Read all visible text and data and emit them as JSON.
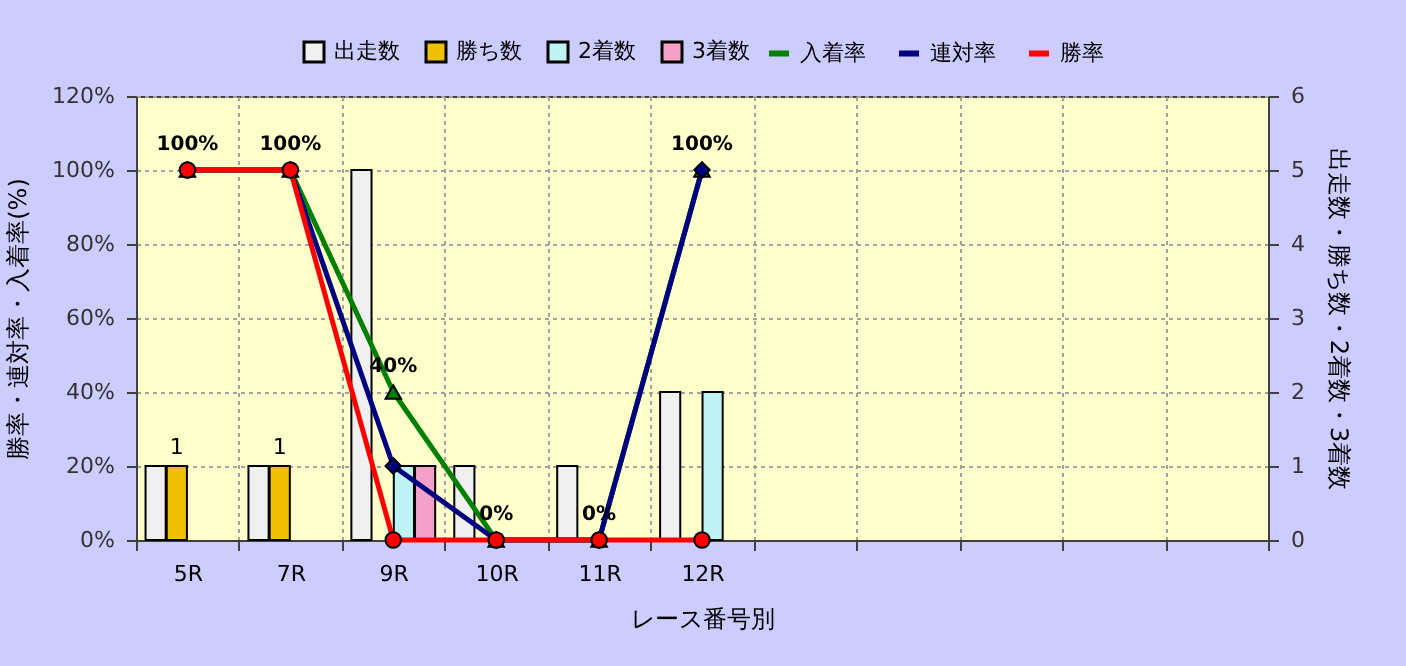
{
  "chart_data": {
    "type": "bar",
    "xlabel": "レース番号別",
    "ylabel": "勝率・連対率・入着率(%)",
    "y2label": "出走数・勝ち数・2着数・3着数",
    "categories": [
      "5R",
      "7R",
      "9R",
      "10R",
      "11R",
      "12R",
      null,
      null,
      null,
      null,
      null
    ],
    "ylim": [
      0,
      120
    ],
    "yticks": [
      {
        "value": 0,
        "label": "0%"
      },
      {
        "value": 20,
        "label": "20%"
      },
      {
        "value": 40,
        "label": "40%"
      },
      {
        "value": 60,
        "label": "60%"
      },
      {
        "value": 80,
        "label": "80%"
      },
      {
        "value": 100,
        "label": "100%"
      },
      {
        "value": 120,
        "label": "120%"
      }
    ],
    "y2lim": [
      0,
      6
    ],
    "y2ticks": [
      0,
      1,
      2,
      3,
      4,
      5,
      6
    ],
    "grid": true,
    "legend": "top",
    "series": [
      {
        "name": "出走数",
        "axis": "y2",
        "color": "#f0f0f0",
        "values": [
          1,
          1,
          5,
          1,
          1,
          2,
          null,
          null,
          null,
          null,
          null
        ]
      },
      {
        "name": "勝ち数",
        "axis": "y2",
        "color": "#f0c000",
        "values": [
          1,
          1,
          null,
          null,
          null,
          null,
          null,
          null,
          null,
          null,
          null
        ],
        "value_labels": [
          "1",
          "1",
          null,
          null,
          null,
          null,
          null,
          null,
          null,
          null,
          null
        ]
      },
      {
        "name": "2着数",
        "axis": "y2",
        "color": "#c0f4f4",
        "values": [
          null,
          null,
          1,
          null,
          null,
          2,
          null,
          null,
          null,
          null,
          null
        ]
      },
      {
        "name": "3着数",
        "axis": "y2",
        "color": "#f4a0c8",
        "values": [
          null,
          null,
          1,
          null,
          null,
          null,
          null,
          null,
          null,
          null,
          null
        ]
      },
      {
        "name": "入着率",
        "type": "line",
        "marker": "triangle",
        "color": "#008000",
        "values": [
          100,
          100,
          40,
          0,
          0,
          100,
          null,
          null,
          null,
          null,
          null
        ],
        "value_labels": [
          "100%",
          "100%",
          "40%",
          "0%",
          "0%",
          "100%",
          null,
          null,
          null,
          null,
          null
        ]
      },
      {
        "name": "連対率",
        "type": "line",
        "marker": "diamond",
        "color": "#000080",
        "values": [
          100,
          100,
          20,
          0,
          0,
          100,
          null,
          null,
          null,
          null,
          null
        ]
      },
      {
        "name": "勝率",
        "type": "line",
        "marker": "circle",
        "color": "#ff0000",
        "values": [
          100,
          100,
          0,
          0,
          0,
          0,
          null,
          null,
          null,
          null,
          null
        ]
      }
    ]
  }
}
